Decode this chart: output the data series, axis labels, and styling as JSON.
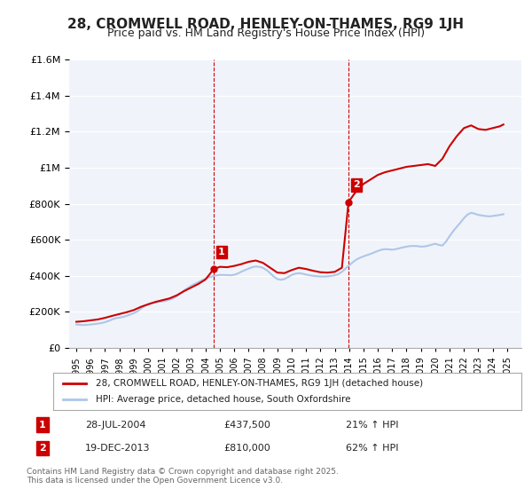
{
  "title": "28, CROMWELL ROAD, HENLEY-ON-THAMES, RG9 1JH",
  "subtitle": "Price paid vs. HM Land Registry's House Price Index (HPI)",
  "legend_line1": "28, CROMWELL ROAD, HENLEY-ON-THAMES, RG9 1JH (detached house)",
  "legend_line2": "HPI: Average price, detached house, South Oxfordshire",
  "annotation1_label": "1",
  "annotation1_date": "28-JUL-2004",
  "annotation1_price": "£437,500",
  "annotation1_hpi": "21% ↑ HPI",
  "annotation2_label": "2",
  "annotation2_date": "19-DEC-2013",
  "annotation2_price": "£810,000",
  "annotation2_hpi": "62% ↑ HPI",
  "footnote": "Contains HM Land Registry data © Crown copyright and database right 2025.\nThis data is licensed under the Open Government Licence v3.0.",
  "sale1_x": 2004.57,
  "sale1_y": 437500,
  "sale2_x": 2013.96,
  "sale2_y": 810000,
  "vline1_x": 2004.57,
  "vline2_x": 2013.96,
  "hpi_color": "#aec6e8",
  "price_color": "#cc0000",
  "vline_color": "#cc0000",
  "background_color": "#f0f4fa",
  "ylim": [
    0,
    1600000
  ],
  "xlim": [
    1994.5,
    2026
  ],
  "hpi_data": {
    "x": [
      1995.0,
      1995.25,
      1995.5,
      1995.75,
      1996.0,
      1996.25,
      1996.5,
      1996.75,
      1997.0,
      1997.25,
      1997.5,
      1997.75,
      1998.0,
      1998.25,
      1998.5,
      1998.75,
      1999.0,
      1999.25,
      1999.5,
      1999.75,
      2000.0,
      2000.25,
      2000.5,
      2000.75,
      2001.0,
      2001.25,
      2001.5,
      2001.75,
      2002.0,
      2002.25,
      2002.5,
      2002.75,
      2003.0,
      2003.25,
      2003.5,
      2003.75,
      2004.0,
      2004.25,
      2004.5,
      2004.75,
      2005.0,
      2005.25,
      2005.5,
      2005.75,
      2006.0,
      2006.25,
      2006.5,
      2006.75,
      2007.0,
      2007.25,
      2007.5,
      2007.75,
      2008.0,
      2008.25,
      2008.5,
      2008.75,
      2009.0,
      2009.25,
      2009.5,
      2009.75,
      2010.0,
      2010.25,
      2010.5,
      2010.75,
      2011.0,
      2011.25,
      2011.5,
      2011.75,
      2012.0,
      2012.25,
      2012.5,
      2012.75,
      2013.0,
      2013.25,
      2013.5,
      2013.75,
      2014.0,
      2014.25,
      2014.5,
      2014.75,
      2015.0,
      2015.25,
      2015.5,
      2015.75,
      2016.0,
      2016.25,
      2016.5,
      2016.75,
      2017.0,
      2017.25,
      2017.5,
      2017.75,
      2018.0,
      2018.25,
      2018.5,
      2018.75,
      2019.0,
      2019.25,
      2019.5,
      2019.75,
      2020.0,
      2020.25,
      2020.5,
      2020.75,
      2021.0,
      2021.25,
      2021.5,
      2021.75,
      2022.0,
      2022.25,
      2022.5,
      2022.75,
      2023.0,
      2023.25,
      2023.5,
      2023.75,
      2024.0,
      2024.25,
      2024.5,
      2024.75
    ],
    "y": [
      130000,
      128000,
      127000,
      128000,
      130000,
      132000,
      135000,
      138000,
      143000,
      150000,
      158000,
      165000,
      168000,
      172000,
      178000,
      185000,
      193000,
      203000,
      218000,
      232000,
      242000,
      248000,
      252000,
      256000,
      258000,
      262000,
      268000,
      275000,
      287000,
      302000,
      318000,
      332000,
      345000,
      355000,
      365000,
      375000,
      385000,
      392000,
      398000,
      402000,
      405000,
      405000,
      404000,
      403000,
      406000,
      413000,
      423000,
      432000,
      440000,
      448000,
      452000,
      450000,
      444000,
      432000,
      415000,
      396000,
      382000,
      378000,
      382000,
      393000,
      405000,
      412000,
      415000,
      412000,
      407000,
      403000,
      400000,
      398000,
      396000,
      396000,
      397000,
      400000,
      403000,
      410000,
      422000,
      440000,
      458000,
      475000,
      490000,
      500000,
      508000,
      515000,
      522000,
      530000,
      538000,
      545000,
      548000,
      547000,
      545000,
      548000,
      553000,
      558000,
      562000,
      565000,
      566000,
      565000,
      562000,
      563000,
      567000,
      573000,
      578000,
      572000,
      568000,
      590000,
      620000,
      648000,
      672000,
      695000,
      720000,
      740000,
      750000,
      745000,
      738000,
      735000,
      732000,
      730000,
      732000,
      735000,
      738000,
      742000
    ]
  },
  "price_data": {
    "x": [
      1995.0,
      1995.5,
      1996.0,
      1996.5,
      1997.0,
      1997.5,
      1998.0,
      1998.5,
      1999.0,
      1999.5,
      2000.0,
      2000.5,
      2001.0,
      2001.5,
      2002.0,
      2002.5,
      2003.0,
      2003.5,
      2004.0,
      2004.57,
      2005.0,
      2005.5,
      2006.0,
      2006.5,
      2007.0,
      2007.5,
      2008.0,
      2008.5,
      2009.0,
      2009.5,
      2010.0,
      2010.5,
      2011.0,
      2011.5,
      2012.0,
      2012.5,
      2013.0,
      2013.5,
      2013.96,
      2014.5,
      2015.0,
      2015.5,
      2016.0,
      2016.5,
      2017.0,
      2017.5,
      2018.0,
      2018.5,
      2019.0,
      2019.5,
      2020.0,
      2020.5,
      2021.0,
      2021.5,
      2022.0,
      2022.5,
      2023.0,
      2023.5,
      2024.0,
      2024.5,
      2024.75
    ],
    "y": [
      145000,
      148000,
      153000,
      158000,
      167000,
      178000,
      188000,
      198000,
      210000,
      228000,
      242000,
      255000,
      265000,
      275000,
      292000,
      315000,
      335000,
      355000,
      380000,
      437500,
      450000,
      448000,
      455000,
      465000,
      478000,
      485000,
      472000,
      445000,
      418000,
      415000,
      432000,
      445000,
      438000,
      428000,
      420000,
      418000,
      422000,
      445000,
      810000,
      870000,
      910000,
      935000,
      960000,
      975000,
      985000,
      995000,
      1005000,
      1010000,
      1015000,
      1020000,
      1010000,
      1050000,
      1120000,
      1175000,
      1220000,
      1235000,
      1215000,
      1210000,
      1220000,
      1230000,
      1240000
    ]
  }
}
